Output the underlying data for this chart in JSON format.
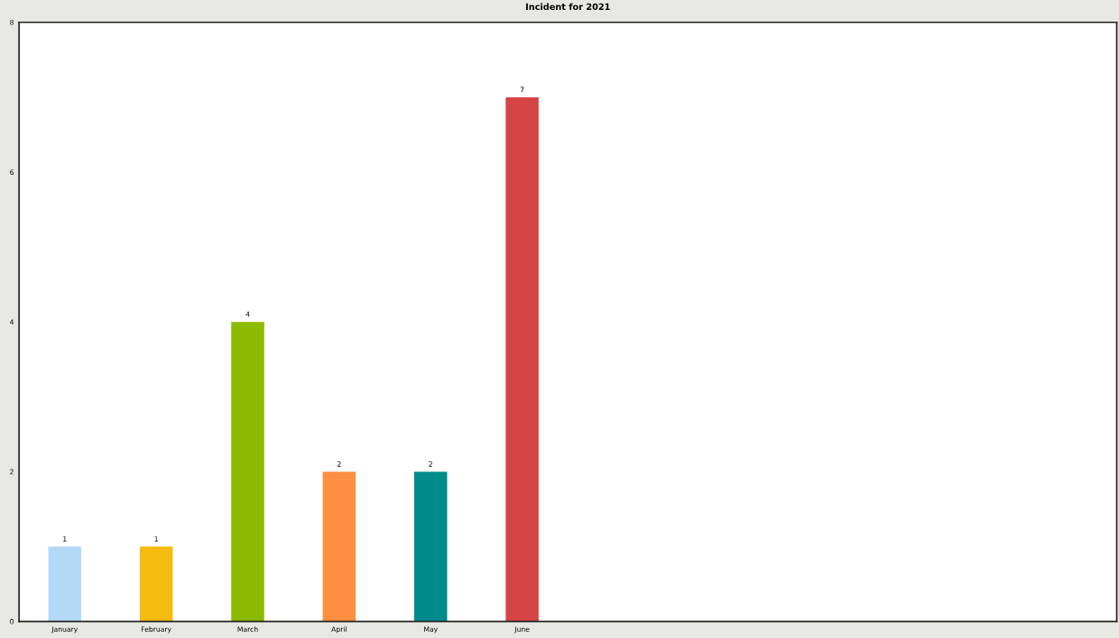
{
  "chart_data": {
    "type": "bar",
    "title": "Incident for 2021",
    "categories": [
      "January",
      "February",
      "March",
      "April",
      "May",
      "June",
      null,
      null,
      null,
      null,
      null,
      null
    ],
    "values": [
      1,
      1,
      4,
      2,
      2,
      7,
      null,
      null,
      null,
      null,
      null,
      null
    ],
    "colors": [
      "#b3d9f7",
      "#f5bb10",
      "#8cba00",
      "#ff8f40",
      "#008b8b",
      "#d64545",
      null,
      null,
      null,
      null,
      null,
      null
    ],
    "ylim": [
      0,
      8
    ],
    "yticks": [
      0,
      2,
      4,
      6,
      8
    ],
    "data_labels": true,
    "grid": false,
    "legend": false
  }
}
